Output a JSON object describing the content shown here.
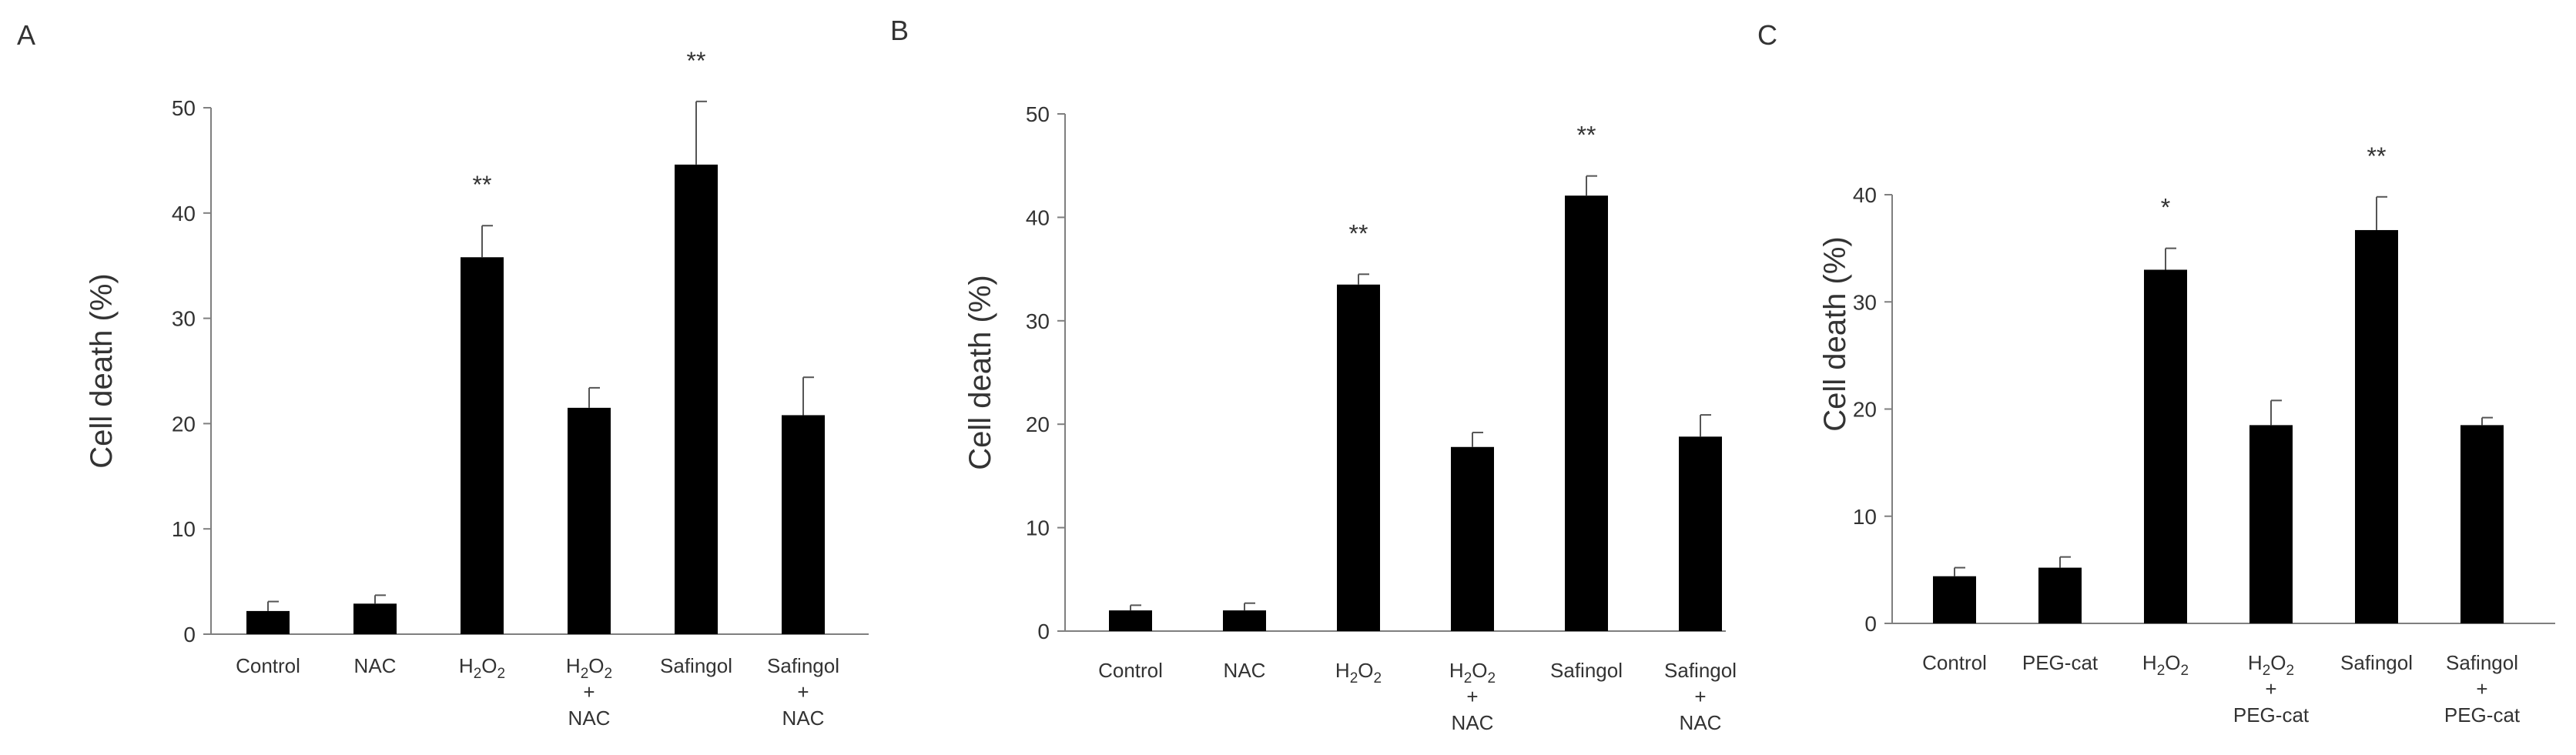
{
  "chart_data": [
    {
      "type": "bar",
      "panel": "A",
      "ylabel": "Cell death (%)",
      "ylim": [
        0,
        50
      ],
      "yticks": [
        "0",
        "10",
        "20",
        "30",
        "40",
        "50"
      ],
      "categories": [
        {
          "line1": "Control"
        },
        {
          "line1": "NAC"
        },
        {
          "line1": "H",
          "sub1": "2",
          "mid1": "O",
          "sub2": "2"
        },
        {
          "line1": "H",
          "sub1": "2",
          "mid1": "O",
          "sub2": "2",
          "line2": "+",
          "line3": "NAC"
        },
        {
          "line1": "Safingol"
        },
        {
          "line1": "Safingol",
          "line2": "+",
          "line3": "NAC"
        }
      ],
      "values": [
        2.2,
        2.9,
        35.8,
        21.5,
        44.6,
        20.8
      ],
      "errors": [
        0.9,
        0.8,
        3.0,
        1.9,
        6.0,
        3.6
      ],
      "significance": [
        "",
        "",
        "**",
        "",
        "**",
        ""
      ],
      "bar_color": "#000000"
    },
    {
      "type": "bar",
      "panel": "B",
      "ylabel": "Cell death (%)",
      "ylim": [
        0,
        50
      ],
      "yticks": [
        "0",
        "10",
        "20",
        "30",
        "40",
        "50"
      ],
      "categories": [
        {
          "line1": "Control"
        },
        {
          "line1": "NAC"
        },
        {
          "line1": "H",
          "sub1": "2",
          "mid1": "O",
          "sub2": "2"
        },
        {
          "line1": "H",
          "sub1": "2",
          "mid1": "O",
          "sub2": "2",
          "line2": "+",
          "line3": "NAC"
        },
        {
          "line1": "Safingol"
        },
        {
          "line1": "Safingol",
          "line2": "+",
          "line3": "NAC"
        }
      ],
      "values": [
        2.0,
        2.0,
        33.5,
        17.8,
        42.1,
        18.8
      ],
      "errors": [
        0.5,
        0.7,
        1.0,
        1.4,
        1.9,
        2.1
      ],
      "significance": [
        "",
        "",
        "**",
        "",
        "**",
        ""
      ],
      "bar_color": "#000000"
    },
    {
      "type": "bar",
      "panel": "C",
      "ylabel": "Cell death (%)",
      "ylim": [
        0,
        40
      ],
      "yticks": [
        "0",
        "10",
        "20",
        "30",
        "40"
      ],
      "categories": [
        {
          "line1": "Control"
        },
        {
          "line1": "PEG-cat"
        },
        {
          "line1": "H",
          "sub1": "2",
          "mid1": "O",
          "sub2": "2"
        },
        {
          "line1": "H",
          "sub1": "2",
          "mid1": "O",
          "sub2": "2",
          "line2": "+",
          "line3": "PEG-cat"
        },
        {
          "line1": "Safingol"
        },
        {
          "line1": "Safingol",
          "line2": "+",
          "line3": "PEG-cat"
        }
      ],
      "values": [
        4.4,
        5.2,
        33.0,
        18.5,
        36.7,
        18.5
      ],
      "errors": [
        0.8,
        1.0,
        2.0,
        2.3,
        3.1,
        0.7
      ],
      "significance": [
        "",
        "",
        "*",
        "",
        "**",
        ""
      ],
      "bar_color": "#000000"
    }
  ]
}
